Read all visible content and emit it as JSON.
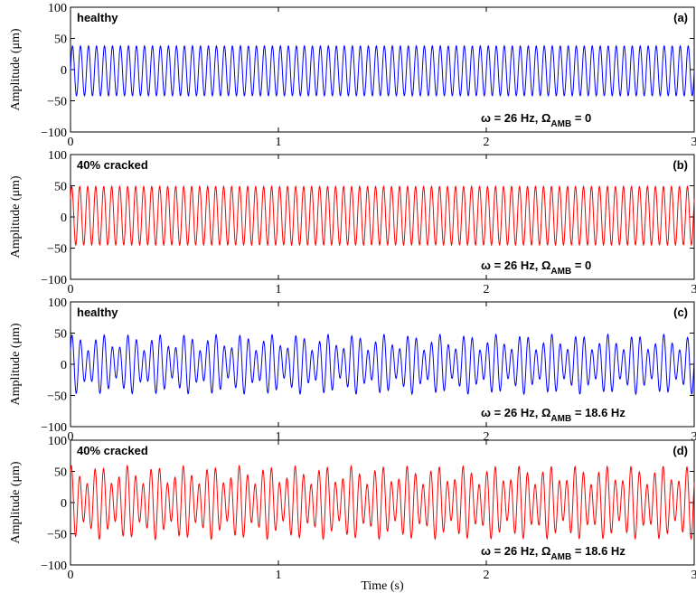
{
  "xlabel": "Time (s)",
  "colors": {
    "blue": "#0000ff",
    "red": "#ff0000"
  },
  "chart_data": [
    {
      "type": "line",
      "state_label": "healthy",
      "panel_label": "(a)",
      "condition": {
        "omega": "ω = 26 Hz,",
        "Omega": "Ω",
        "Omega_sub": "AMB",
        "Omega_value": " = 0"
      },
      "ylabel": "Amplitude (μm)",
      "ylim": [
        -100,
        100
      ],
      "yticks": [
        "100",
        "50",
        "0",
        "−50",
        "−100"
      ],
      "xlim": [
        0,
        3
      ],
      "xticks": [
        "0",
        "1",
        "2",
        "3"
      ],
      "series": [
        {
          "color": "blue",
          "freq_hz": 26,
          "mean": -2,
          "amp": 40,
          "amp2": 0,
          "mod_freq_hz": 0,
          "phase": 0
        }
      ]
    },
    {
      "type": "line",
      "state_label": "40% cracked",
      "panel_label": "(b)",
      "condition": {
        "omega": "ω = 26 Hz,",
        "Omega": "Ω",
        "Omega_sub": "AMB",
        "Omega_value": " = 0"
      },
      "ylabel": "Amplitude (μm)",
      "ylim": [
        -100,
        100
      ],
      "yticks": [
        "100",
        "50",
        "0",
        "−50",
        "−100"
      ],
      "xlim": [
        0,
        3
      ],
      "xticks": [
        "0",
        "1",
        "2",
        "3"
      ],
      "series": [
        {
          "color": "red",
          "freq_hz": 26,
          "mean": 2,
          "amp": 47,
          "amp2": 0,
          "mod_freq_hz": 0,
          "phase": 0.6
        }
      ]
    },
    {
      "type": "line",
      "state_label": "healthy",
      "panel_label": "(c)",
      "condition": {
        "omega": "ω = 26 Hz,",
        "Omega": "Ω",
        "Omega_sub": "AMB",
        "Omega_value": " = 18.6 Hz"
      },
      "ylabel": "Amplitude (μm)",
      "ylim": [
        -100,
        100
      ],
      "yticks": [
        "100",
        "50",
        "0",
        "−50",
        "−100"
      ],
      "xlim": [
        0,
        3
      ],
      "xticks": [
        "0",
        "1",
        "2",
        "3"
      ],
      "series": [
        {
          "color": "blue",
          "freq_hz": 26,
          "mean": 0,
          "amp": 35,
          "amp2": 13,
          "mod_freq_hz": 18.6,
          "phase": 0.3
        }
      ]
    },
    {
      "type": "line",
      "state_label": "40% cracked",
      "panel_label": "(d)",
      "condition": {
        "omega": "ω = 26 Hz,",
        "Omega": "Ω",
        "Omega_sub": "AMB",
        "Omega_value": " = 18.6 Hz"
      },
      "ylabel": "Amplitude (μm)",
      "ylim": [
        -100,
        100
      ],
      "yticks": [
        "100",
        "50",
        "0",
        "−50",
        "−100"
      ],
      "xlim": [
        0,
        3
      ],
      "xticks": [
        "0",
        "1",
        "2",
        "3"
      ],
      "series": [
        {
          "color": "red",
          "freq_hz": 26,
          "mean": 0,
          "amp": 44,
          "amp2": 15,
          "mod_freq_hz": 18.6,
          "phase": 0.9
        }
      ]
    }
  ]
}
